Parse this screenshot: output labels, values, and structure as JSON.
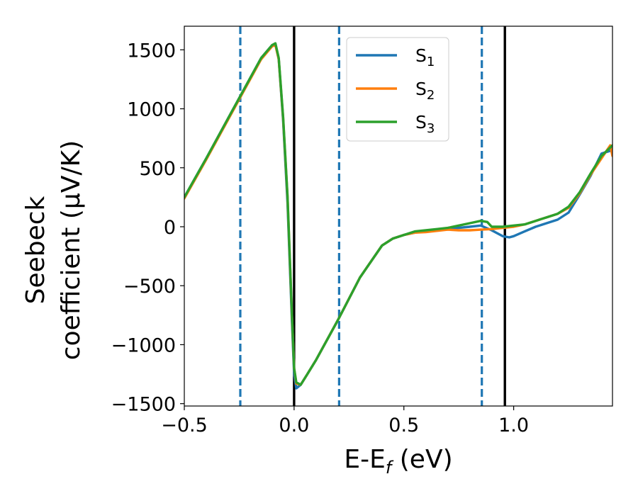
{
  "chart_data": {
    "type": "line",
    "xlabel": {
      "main": "E-E",
      "sub": "f",
      "rest": " (eV)"
    },
    "ylabel": {
      "line1": "Seebeck",
      "line2": "coefficient  (μV/K)"
    },
    "xlim": [
      -0.5,
      1.45
    ],
    "ylim": [
      -1520,
      1700
    ],
    "x_ticks": [
      -0.5,
      0.0,
      0.5,
      1.0
    ],
    "x_tick_labels": [
      "−0.5",
      "0.0",
      "0.5",
      "1.0"
    ],
    "y_ticks": [
      -1500,
      -1000,
      -500,
      0,
      500,
      1000,
      1500
    ],
    "y_tick_labels": [
      "−1500",
      "−1000",
      "−500",
      "0",
      "500",
      "1000",
      "1500"
    ],
    "grid": false,
    "legend_position": "top-center",
    "vertical_lines": [
      {
        "x": -0.245,
        "style": "dashed",
        "color": "#1f77b4"
      },
      {
        "x": 0.0,
        "style": "solid",
        "color": "#000000"
      },
      {
        "x": 0.205,
        "style": "dashed",
        "color": "#1f77b4"
      },
      {
        "x": 0.855,
        "style": "dashed",
        "color": "#1f77b4"
      },
      {
        "x": 0.96,
        "style": "solid",
        "color": "#000000"
      }
    ],
    "series": [
      {
        "name": "S",
        "sub": "1",
        "color": "#1f77b4",
        "x": [
          -0.5,
          -0.4,
          -0.3,
          -0.2,
          -0.15,
          -0.1,
          -0.085,
          -0.07,
          -0.05,
          -0.03,
          -0.01,
          0.0,
          0.01,
          0.03,
          0.06,
          0.1,
          0.2,
          0.3,
          0.4,
          0.45,
          0.5,
          0.55,
          0.6,
          0.65,
          0.7,
          0.75,
          0.8,
          0.85,
          0.9,
          0.95,
          0.98,
          1.0,
          1.05,
          1.1,
          1.15,
          1.2,
          1.25,
          1.3,
          1.35,
          1.4,
          1.45
        ],
        "y": [
          250,
          580,
          920,
          1260,
          1430,
          1540,
          1550,
          1420,
          900,
          200,
          -800,
          -1250,
          -1370,
          -1340,
          -1250,
          -1130,
          -790,
          -430,
          -160,
          -100,
          -70,
          -50,
          -40,
          -30,
          -20,
          -10,
          0,
          10,
          -30,
          -80,
          -90,
          -80,
          -40,
          0,
          30,
          60,
          120,
          270,
          430,
          620,
          650
        ]
      },
      {
        "name": "S",
        "sub": "2",
        "color": "#ff7f0e",
        "x": [
          -0.5,
          -0.4,
          -0.3,
          -0.2,
          -0.15,
          -0.1,
          -0.085,
          -0.07,
          -0.05,
          -0.03,
          -0.01,
          0.0,
          0.01,
          0.03,
          0.06,
          0.1,
          0.2,
          0.3,
          0.4,
          0.45,
          0.5,
          0.55,
          0.6,
          0.65,
          0.7,
          0.75,
          0.8,
          0.85,
          0.9,
          0.95,
          1.0,
          1.05,
          1.1,
          1.15,
          1.2,
          1.25,
          1.3,
          1.35,
          1.4,
          1.44,
          1.45
        ],
        "y": [
          240,
          570,
          910,
          1250,
          1420,
          1530,
          1540,
          1420,
          920,
          250,
          -750,
          -1200,
          -1330,
          -1340,
          -1250,
          -1130,
          -790,
          -430,
          -160,
          -100,
          -70,
          -50,
          -45,
          -35,
          -25,
          -30,
          -30,
          -25,
          -20,
          -10,
          0,
          20,
          50,
          80,
          110,
          160,
          280,
          440,
          580,
          690,
          600
        ]
      },
      {
        "name": "S",
        "sub": "3",
        "color": "#2ca02c",
        "x": [
          -0.5,
          -0.4,
          -0.3,
          -0.2,
          -0.15,
          -0.1,
          -0.085,
          -0.07,
          -0.05,
          -0.03,
          -0.01,
          0.0,
          0.01,
          0.03,
          0.06,
          0.1,
          0.2,
          0.3,
          0.4,
          0.45,
          0.5,
          0.55,
          0.6,
          0.65,
          0.7,
          0.75,
          0.8,
          0.85,
          0.88,
          0.9,
          0.95,
          1.0,
          1.05,
          1.1,
          1.15,
          1.2,
          1.25,
          1.3,
          1.35,
          1.4,
          1.45
        ],
        "y": [
          250,
          580,
          920,
          1260,
          1430,
          1540,
          1555,
          1430,
          930,
          260,
          -740,
          -1200,
          -1320,
          -1340,
          -1250,
          -1130,
          -790,
          -430,
          -160,
          -100,
          -70,
          -40,
          -30,
          -20,
          -10,
          10,
          30,
          50,
          40,
          0,
          0,
          10,
          20,
          50,
          80,
          110,
          170,
          290,
          450,
          600,
          690
        ]
      }
    ]
  }
}
